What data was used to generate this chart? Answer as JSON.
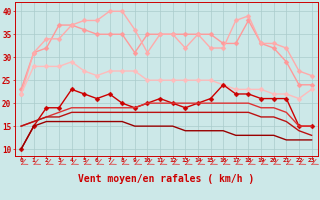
{
  "background_color": "#cce8e8",
  "grid_color": "#aacccc",
  "x_labels": [
    0,
    1,
    2,
    3,
    4,
    5,
    6,
    7,
    8,
    9,
    10,
    11,
    12,
    13,
    14,
    15,
    16,
    17,
    18,
    19,
    20,
    21,
    22,
    23
  ],
  "xlabel": "Vent moyen/en rafales ( km/h )",
  "xlabel_color": "#cc0000",
  "xlabel_fontsize": 7,
  "tick_color": "#cc0000",
  "yticks": [
    10,
    15,
    20,
    25,
    30,
    35,
    40
  ],
  "ylim": [
    8.5,
    42
  ],
  "xlim": [
    -0.5,
    23.5
  ],
  "lines": [
    {
      "y": [
        23,
        31,
        32,
        37,
        37,
        36,
        35,
        35,
        35,
        31,
        35,
        35,
        35,
        35,
        35,
        35,
        33,
        33,
        38,
        33,
        32,
        29,
        24,
        24
      ],
      "color": "#ff9999",
      "marker": "D",
      "markersize": 2.5,
      "linewidth": 1.0
    },
    {
      "y": [
        22,
        31,
        34,
        34,
        37,
        38,
        38,
        40,
        40,
        36,
        31,
        35,
        35,
        32,
        35,
        32,
        32,
        38,
        39,
        33,
        33,
        32,
        27,
        26
      ],
      "color": "#ffaaaa",
      "marker": "D",
      "markersize": 2.5,
      "linewidth": 1.0
    },
    {
      "y": [
        22,
        28,
        28,
        28,
        29,
        27,
        26,
        27,
        27,
        27,
        25,
        25,
        25,
        25,
        25,
        25,
        24,
        23,
        23,
        23,
        22,
        22,
        21,
        23
      ],
      "color": "#ffbbbb",
      "marker": "D",
      "markersize": 2.5,
      "linewidth": 1.0
    },
    {
      "y": [
        10,
        15,
        19,
        19,
        23,
        22,
        21,
        22,
        20,
        19,
        20,
        21,
        20,
        19,
        20,
        21,
        24,
        22,
        22,
        21,
        21,
        21,
        15,
        15
      ],
      "color": "#cc0000",
      "marker": "D",
      "markersize": 2.5,
      "linewidth": 1.0
    },
    {
      "y": [
        15,
        16,
        17,
        18,
        19,
        19,
        19,
        19,
        19,
        19,
        20,
        20,
        20,
        20,
        20,
        20,
        20,
        20,
        20,
        19,
        19,
        18,
        15,
        15
      ],
      "color": "#dd3333",
      "marker": null,
      "markersize": 0,
      "linewidth": 1.0
    },
    {
      "y": [
        15,
        16,
        17,
        17,
        18,
        18,
        18,
        18,
        18,
        18,
        18,
        18,
        18,
        18,
        18,
        18,
        18,
        18,
        18,
        17,
        17,
        16,
        14,
        13
      ],
      "color": "#bb1111",
      "marker": null,
      "markersize": 0,
      "linewidth": 1.0
    },
    {
      "y": [
        10,
        15,
        16,
        16,
        16,
        16,
        16,
        16,
        16,
        15,
        15,
        15,
        15,
        14,
        14,
        14,
        14,
        13,
        13,
        13,
        13,
        12,
        12,
        12
      ],
      "color": "#990000",
      "marker": null,
      "markersize": 0,
      "linewidth": 1.0
    }
  ],
  "arrow_color": "#dd4444"
}
